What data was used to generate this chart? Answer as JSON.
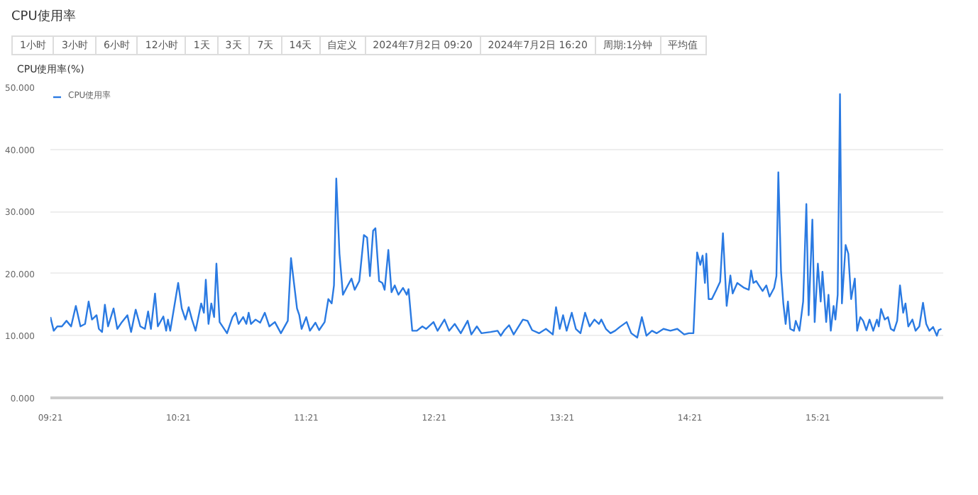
{
  "chart_data": {
    "type": "line",
    "title": "CPU使用率",
    "subtitle": "CPU使用率(%)",
    "annotations": [
      "1小时",
      "3小时",
      "6小时",
      "12小时",
      "1天",
      "3天",
      "7天",
      "14天",
      "自定义",
      "2024年7月2日 09:20",
      "2024年7月2日 16:20",
      "周期:1分钟",
      "平均值"
    ],
    "xlim": [
      9.35,
      16.33
    ],
    "xticks": [
      {
        "value": 9.35,
        "label": "09:21"
      },
      {
        "value": 10.35,
        "label": "10:21"
      },
      {
        "value": 11.35,
        "label": "11:21"
      },
      {
        "value": 12.35,
        "label": "12:21"
      },
      {
        "value": 13.35,
        "label": "13:21"
      },
      {
        "value": 14.35,
        "label": "14:21"
      },
      {
        "value": 15.35,
        "label": "15:21"
      }
    ],
    "ylim": [
      0,
      50
    ],
    "yticks": [
      {
        "value": 0,
        "label": "0.000"
      },
      {
        "value": 10,
        "label": "10.000"
      },
      {
        "value": 20,
        "label": "20.000"
      },
      {
        "value": 30,
        "label": "30.000"
      },
      {
        "value": 40,
        "label": "40.000"
      },
      {
        "value": 50,
        "label": "50.000"
      }
    ],
    "grid": "y",
    "legend": "top left",
    "series": [
      {
        "name": "CPU使用率",
        "color": "#2a7ae2",
        "x": [
          9.35,
          9.376,
          9.404,
          9.44,
          9.476,
          9.512,
          9.549,
          9.585,
          9.621,
          9.649,
          9.675,
          9.711,
          9.729,
          9.754,
          9.776,
          9.801,
          9.844,
          9.873,
          9.909,
          9.952,
          9.981,
          10.017,
          10.053,
          10.089,
          10.114,
          10.136,
          10.168,
          10.19,
          10.233,
          10.255,
          10.269,
          10.287,
          10.349,
          10.377,
          10.406,
          10.431,
          10.457,
          10.485,
          10.529,
          10.55,
          10.565,
          10.586,
          10.608,
          10.63,
          10.648,
          10.673,
          10.731,
          10.774,
          10.799,
          10.821,
          10.857,
          10.882,
          10.9,
          10.918,
          10.954,
          10.99,
          11.026,
          11.062,
          11.105,
          11.152,
          11.206,
          11.231,
          11.278,
          11.296,
          11.314,
          11.35,
          11.379,
          11.422,
          11.451,
          11.494,
          11.523,
          11.549,
          11.567,
          11.585,
          11.61,
          11.637,
          11.675,
          11.704,
          11.729,
          11.765,
          11.801,
          11.826,
          11.848,
          11.873,
          11.891,
          11.92,
          11.945,
          11.963,
          11.992,
          12.017,
          12.042,
          12.071,
          12.107,
          12.136,
          12.15,
          12.179,
          12.215,
          12.258,
          12.287,
          12.345,
          12.377,
          12.431,
          12.467,
          12.511,
          12.558,
          12.612,
          12.641,
          12.684,
          12.72,
          12.792,
          12.846,
          12.871,
          12.9,
          12.936,
          12.972,
          13.044,
          13.08,
          13.116,
          13.17,
          13.224,
          13.278,
          13.303,
          13.332,
          13.358,
          13.386,
          13.426,
          13.458,
          13.494,
          13.53,
          13.566,
          13.603,
          13.639,
          13.657,
          13.693,
          13.729,
          13.765,
          13.801,
          13.855,
          13.891,
          13.938,
          13.974,
          14.01,
          14.053,
          14.089,
          14.143,
          14.197,
          14.251,
          14.305,
          14.341,
          14.377,
          14.406,
          14.431,
          14.449,
          14.467,
          14.478,
          14.496,
          14.521,
          14.557,
          14.586,
          14.608,
          14.637,
          14.666,
          14.684,
          14.72,
          14.774,
          14.81,
          14.828,
          14.846,
          14.868,
          14.889,
          14.918,
          14.947,
          14.972,
          15.008,
          15.026,
          15.041,
          15.062,
          15.08,
          15.098,
          15.116,
          15.134,
          15.163,
          15.177,
          15.206,
          15.235,
          15.26,
          15.278,
          15.307,
          15.325,
          15.35,
          15.372,
          15.386,
          15.415,
          15.433,
          15.451,
          15.473,
          15.487,
          15.505,
          15.523,
          15.538,
          15.567,
          15.588,
          15.61,
          15.639,
          15.657,
          15.682,
          15.704,
          15.729,
          15.754,
          15.783,
          15.812,
          15.826,
          15.844,
          15.873,
          15.898,
          15.92,
          15.945,
          15.97,
          15.992,
          16.017,
          16.035,
          16.057,
          16.089,
          16.114,
          16.143,
          16.172,
          16.197,
          16.222,
          16.251,
          16.28,
          16.294,
          16.316
        ],
        "values": [
          13.0,
          10.8,
          11.5,
          11.5,
          12.4,
          11.5,
          14.8,
          11.5,
          11.9,
          15.5,
          12.6,
          13.3,
          11.1,
          10.6,
          15.0,
          11.5,
          14.4,
          11.1,
          12.2,
          13.3,
          10.6,
          14.2,
          11.5,
          11.1,
          13.9,
          11.1,
          16.8,
          11.5,
          13.1,
          10.8,
          12.6,
          10.8,
          18.5,
          14.4,
          12.6,
          14.6,
          12.6,
          10.8,
          15.2,
          13.7,
          19.0,
          11.9,
          15.2,
          13.0,
          21.6,
          12.2,
          10.4,
          13.0,
          13.7,
          11.9,
          13.0,
          11.9,
          13.7,
          11.9,
          12.6,
          12.1,
          13.7,
          11.5,
          12.2,
          10.4,
          12.4,
          22.5,
          14.4,
          13.3,
          11.1,
          13.0,
          10.8,
          12.1,
          10.9,
          12.2,
          15.9,
          15.2,
          18.1,
          35.3,
          23.2,
          16.6,
          18.1,
          19.2,
          17.4,
          18.8,
          26.2,
          25.8,
          19.6,
          26.9,
          27.3,
          18.8,
          18.5,
          17.4,
          23.8,
          17.0,
          18.1,
          16.6,
          17.7,
          16.6,
          17.5,
          10.8,
          10.8,
          11.5,
          11.1,
          12.2,
          10.8,
          12.6,
          10.8,
          11.9,
          10.4,
          12.4,
          10.2,
          11.5,
          10.4,
          10.6,
          10.8,
          10.0,
          10.9,
          11.7,
          10.2,
          12.6,
          12.4,
          10.9,
          10.4,
          11.1,
          10.2,
          14.6,
          11.1,
          13.3,
          10.8,
          13.7,
          11.1,
          10.4,
          13.7,
          11.5,
          12.6,
          11.9,
          12.6,
          11.1,
          10.4,
          10.8,
          11.4,
          12.2,
          10.4,
          9.7,
          13.0,
          10.0,
          10.8,
          10.4,
          11.1,
          10.8,
          11.1,
          10.2,
          10.4,
          10.4,
          23.4,
          21.4,
          22.9,
          18.5,
          23.2,
          15.9,
          15.9,
          17.4,
          18.7,
          26.5,
          14.8,
          19.7,
          16.8,
          18.5,
          17.7,
          17.4,
          20.5,
          18.5,
          18.8,
          18.1,
          17.2,
          18.1,
          16.3,
          17.7,
          19.6,
          36.3,
          20.3,
          15.2,
          11.9,
          15.5,
          11.1,
          10.8,
          12.4,
          10.8,
          15.5,
          31.2,
          13.3,
          28.7,
          12.2,
          21.6,
          15.5,
          20.3,
          12.2,
          16.6,
          10.8,
          14.8,
          12.6,
          16.6,
          48.9,
          15.2,
          24.6,
          23.2,
          15.9,
          19.2,
          10.8,
          13.0,
          12.4,
          10.9,
          12.6,
          10.8,
          12.6,
          11.5,
          14.3,
          12.6,
          13.0,
          11.1,
          10.8,
          12.4,
          18.1,
          13.7,
          15.2,
          11.5,
          12.6,
          10.8,
          11.5,
          15.3,
          11.9,
          10.8,
          11.4,
          10.0,
          10.9,
          11.1
        ]
      }
    ]
  }
}
